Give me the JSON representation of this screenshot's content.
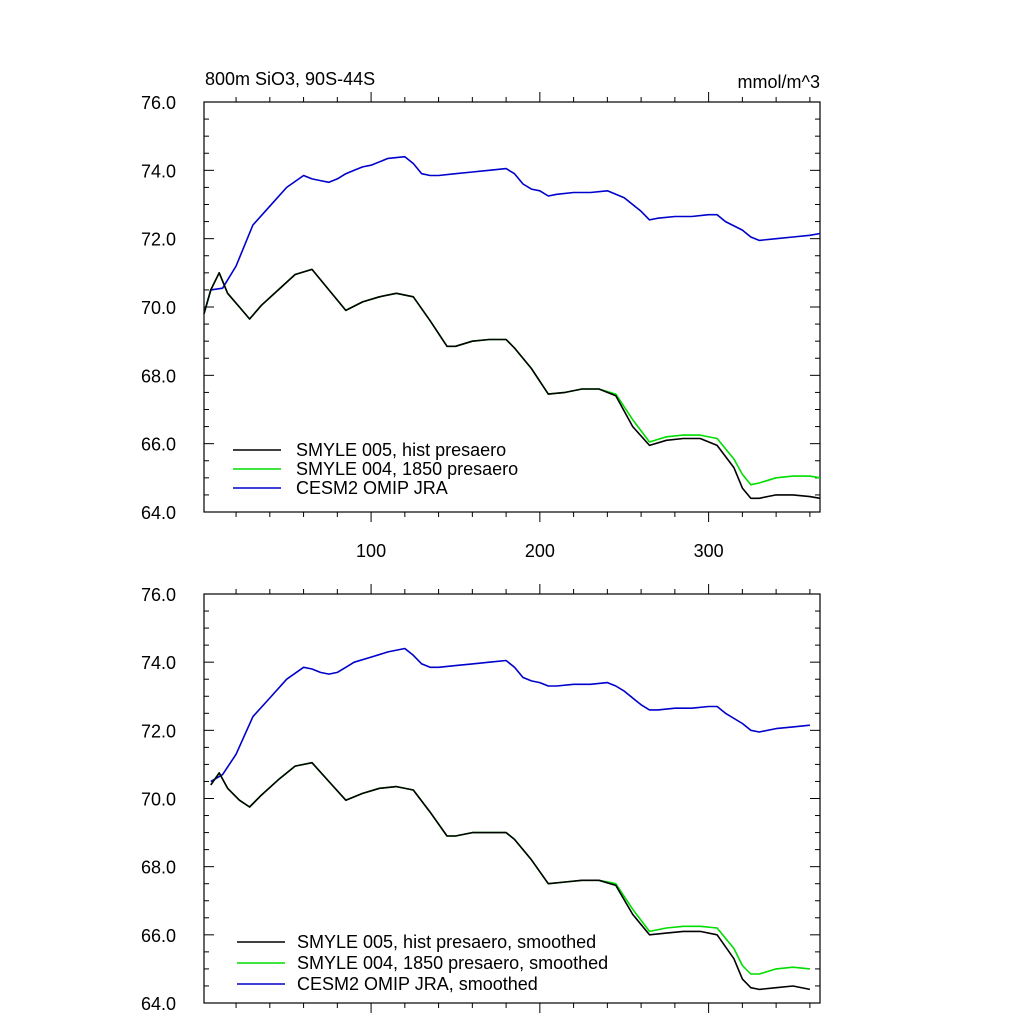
{
  "figure": {
    "title_left": "800m SiO3, 90S-44S",
    "title_right": "mmol/m^3"
  },
  "chart_data": [
    {
      "type": "line",
      "panel": "top",
      "xlim": [
        1,
        366
      ],
      "ylim": [
        64.0,
        76.0
      ],
      "xticks": [
        100,
        200,
        300
      ],
      "xtick_labels": [
        "100",
        "200",
        "300"
      ],
      "yticks": [
        64,
        66,
        68,
        70,
        72,
        74,
        76
      ],
      "ytick_labels": [
        "64.0",
        "66.0",
        "68.0",
        "70.0",
        "72.0",
        "74.0",
        "76.0"
      ],
      "legend_position": "bottom-left",
      "series": [
        {
          "name": "SMYLE 005, hist presaero",
          "color": "#000000",
          "x": [
            1,
            5,
            10,
            15,
            22,
            28,
            35,
            45,
            55,
            65,
            75,
            85,
            95,
            105,
            115,
            125,
            135,
            145,
            150,
            160,
            170,
            180,
            185,
            195,
            205,
            215,
            225,
            235,
            245,
            255,
            265,
            275,
            285,
            295,
            305,
            315,
            320,
            325,
            330,
            340,
            350,
            360,
            366
          ],
          "y": [
            69.8,
            70.5,
            71.0,
            70.4,
            70.0,
            69.65,
            70.05,
            70.5,
            70.95,
            71.1,
            70.5,
            69.9,
            70.15,
            70.3,
            70.4,
            70.3,
            69.6,
            68.85,
            68.85,
            69.0,
            69.05,
            69.05,
            68.8,
            68.2,
            67.45,
            67.5,
            67.6,
            67.6,
            67.4,
            66.5,
            65.95,
            66.1,
            66.15,
            66.15,
            65.95,
            65.3,
            64.7,
            64.4,
            64.4,
            64.5,
            64.5,
            64.45,
            64.4
          ]
        },
        {
          "name": "SMYLE 004, 1850 presaero",
          "color": "#00dd00",
          "x": [
            1,
            5,
            10,
            15,
            22,
            28,
            35,
            45,
            55,
            65,
            75,
            85,
            95,
            105,
            115,
            125,
            135,
            145,
            150,
            160,
            170,
            180,
            185,
            195,
            205,
            215,
            225,
            235,
            245,
            255,
            265,
            275,
            285,
            295,
            305,
            315,
            320,
            325,
            330,
            340,
            350,
            360,
            366
          ],
          "y": [
            69.8,
            70.5,
            71.0,
            70.4,
            70.0,
            69.65,
            70.05,
            70.5,
            70.95,
            71.1,
            70.5,
            69.9,
            70.15,
            70.3,
            70.4,
            70.3,
            69.6,
            68.85,
            68.85,
            69.0,
            69.05,
            69.05,
            68.8,
            68.2,
            67.45,
            67.5,
            67.6,
            67.6,
            67.45,
            66.7,
            66.05,
            66.2,
            66.25,
            66.25,
            66.15,
            65.55,
            65.1,
            64.8,
            64.85,
            65.0,
            65.05,
            65.05,
            65.0
          ]
        },
        {
          "name": "CESM2 OMIP JRA",
          "color": "#0000cc",
          "x": [
            1,
            5,
            12,
            20,
            30,
            40,
            50,
            60,
            65,
            70,
            75,
            80,
            85,
            90,
            95,
            100,
            110,
            120,
            125,
            130,
            135,
            140,
            150,
            160,
            170,
            180,
            185,
            190,
            195,
            200,
            205,
            210,
            220,
            230,
            240,
            245,
            250,
            260,
            265,
            270,
            280,
            290,
            300,
            305,
            310,
            320,
            325,
            330,
            340,
            350,
            360,
            366
          ],
          "y": [
            69.8,
            70.5,
            70.55,
            71.2,
            72.4,
            72.95,
            73.5,
            73.85,
            73.75,
            73.7,
            73.65,
            73.75,
            73.9,
            74.0,
            74.1,
            74.15,
            74.35,
            74.4,
            74.2,
            73.9,
            73.85,
            73.85,
            73.9,
            73.95,
            74.0,
            74.05,
            73.9,
            73.6,
            73.45,
            73.4,
            73.25,
            73.3,
            73.35,
            73.35,
            73.4,
            73.3,
            73.2,
            72.8,
            72.55,
            72.6,
            72.65,
            72.65,
            72.7,
            72.7,
            72.5,
            72.25,
            72.05,
            71.95,
            72.0,
            72.05,
            72.1,
            72.15
          ]
        }
      ]
    },
    {
      "type": "line",
      "panel": "bottom",
      "xlim": [
        1,
        366
      ],
      "ylim": [
        64.0,
        76.0
      ],
      "xticks": [
        100,
        200,
        300
      ],
      "yticks": [
        64,
        66,
        68,
        70,
        72,
        74,
        76
      ],
      "ytick_labels": [
        "64.0",
        "66.0",
        "68.0",
        "70.0",
        "72.0",
        "74.0",
        "76.0"
      ],
      "legend_position": "bottom-left",
      "series": [
        {
          "name": "SMYLE 005, hist presaero, smoothed",
          "color": "#000000",
          "x": [
            5,
            10,
            15,
            22,
            28,
            35,
            45,
            55,
            65,
            75,
            85,
            95,
            105,
            115,
            125,
            135,
            145,
            150,
            160,
            170,
            180,
            185,
            195,
            205,
            215,
            225,
            235,
            245,
            255,
            265,
            275,
            285,
            295,
            305,
            315,
            320,
            325,
            330,
            340,
            350,
            360
          ],
          "y": [
            70.4,
            70.75,
            70.3,
            69.95,
            69.75,
            70.1,
            70.55,
            70.95,
            71.05,
            70.5,
            69.95,
            70.15,
            70.3,
            70.35,
            70.25,
            69.6,
            68.9,
            68.9,
            69.0,
            69.0,
            69.0,
            68.8,
            68.2,
            67.5,
            67.55,
            67.6,
            67.6,
            67.45,
            66.6,
            66.0,
            66.05,
            66.1,
            66.1,
            66.0,
            65.3,
            64.7,
            64.45,
            64.4,
            64.45,
            64.5,
            64.4
          ]
        },
        {
          "name": "SMYLE 004, 1850 presaero, smoothed",
          "color": "#00dd00",
          "x": [
            5,
            10,
            15,
            22,
            28,
            35,
            45,
            55,
            65,
            75,
            85,
            95,
            105,
            115,
            125,
            135,
            145,
            150,
            160,
            170,
            180,
            185,
            195,
            205,
            215,
            225,
            235,
            245,
            255,
            265,
            275,
            285,
            295,
            305,
            315,
            320,
            325,
            330,
            340,
            350,
            360
          ],
          "y": [
            70.4,
            70.75,
            70.3,
            69.95,
            69.75,
            70.1,
            70.55,
            70.95,
            71.05,
            70.5,
            69.95,
            70.15,
            70.3,
            70.35,
            70.25,
            69.6,
            68.9,
            68.9,
            69.0,
            69.0,
            69.0,
            68.8,
            68.2,
            67.5,
            67.55,
            67.6,
            67.6,
            67.5,
            66.75,
            66.1,
            66.2,
            66.25,
            66.25,
            66.2,
            65.6,
            65.1,
            64.85,
            64.85,
            65.0,
            65.05,
            65.0
          ]
        },
        {
          "name": "CESM2 OMIP JRA, smoothed",
          "color": "#0000cc",
          "x": [
            5,
            12,
            20,
            30,
            40,
            50,
            60,
            65,
            70,
            75,
            80,
            85,
            90,
            100,
            110,
            120,
            125,
            130,
            135,
            140,
            150,
            160,
            170,
            180,
            185,
            190,
            195,
            200,
            205,
            210,
            220,
            230,
            240,
            245,
            250,
            260,
            265,
            270,
            280,
            290,
            300,
            305,
            310,
            320,
            325,
            330,
            340,
            350,
            360
          ],
          "y": [
            70.5,
            70.7,
            71.3,
            72.4,
            72.95,
            73.5,
            73.85,
            73.8,
            73.7,
            73.65,
            73.7,
            73.85,
            74.0,
            74.15,
            74.3,
            74.4,
            74.2,
            73.95,
            73.85,
            73.85,
            73.9,
            73.95,
            74.0,
            74.05,
            73.85,
            73.55,
            73.45,
            73.4,
            73.3,
            73.3,
            73.35,
            73.35,
            73.4,
            73.3,
            73.15,
            72.75,
            72.6,
            72.6,
            72.65,
            72.65,
            72.7,
            72.7,
            72.5,
            72.2,
            72.0,
            71.95,
            72.05,
            72.1,
            72.15
          ]
        }
      ]
    }
  ]
}
